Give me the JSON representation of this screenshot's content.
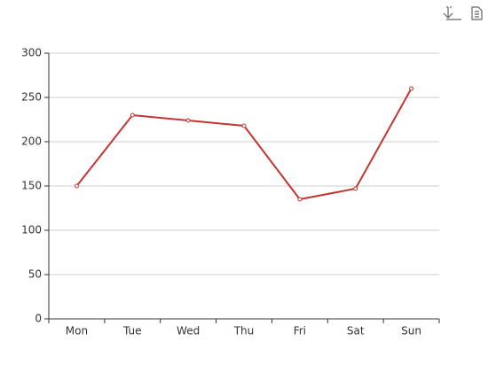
{
  "chart_data": {
    "type": "line",
    "categories": [
      "Mon",
      "Tue",
      "Wed",
      "Thu",
      "Fri",
      "Sat",
      "Sun"
    ],
    "values": [
      150,
      230,
      224,
      218,
      135,
      147,
      260
    ],
    "color": "#c23531",
    "ylim": [
      0,
      300
    ],
    "yticks": [
      0,
      50,
      100,
      150,
      200,
      250,
      300
    ],
    "grid": true
  }
}
